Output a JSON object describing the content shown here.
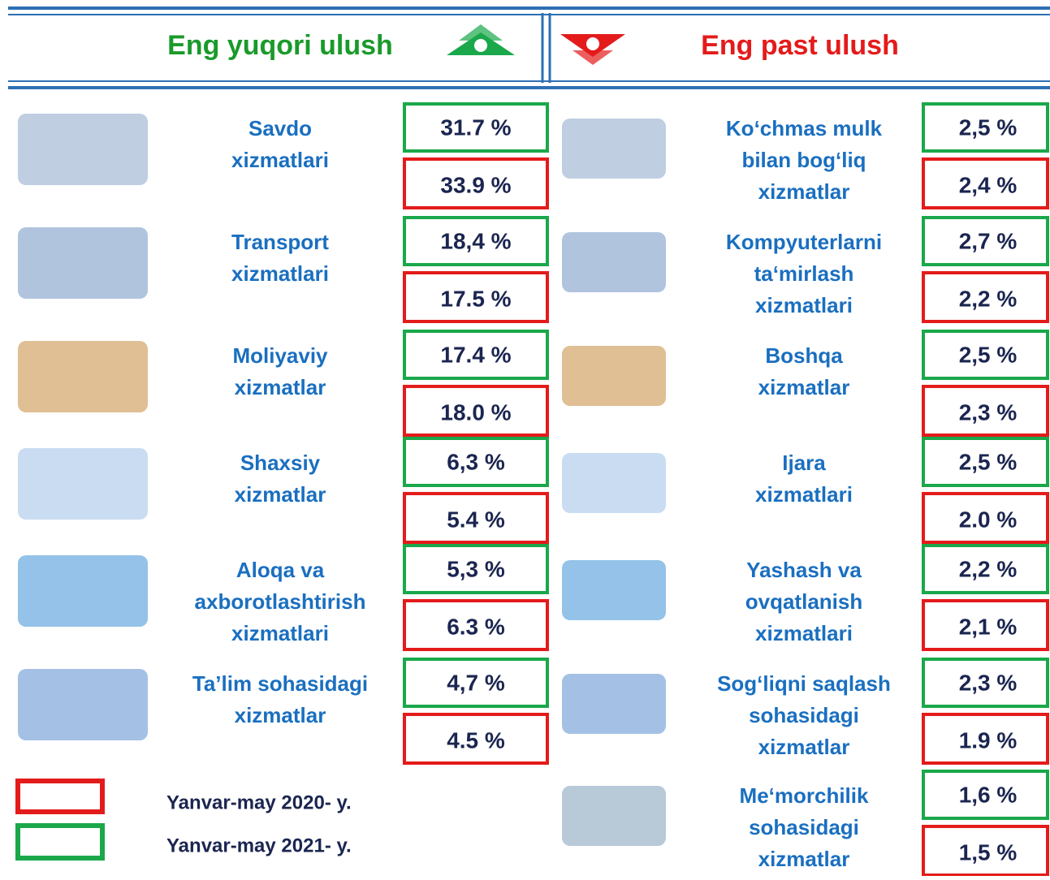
{
  "header": {
    "left_title": "Eng yuqori ulush",
    "right_title": "Eng past ulush"
  },
  "left": [
    {
      "label": [
        "Savdo",
        "xizmatlari"
      ],
      "y2021": "31.7 %",
      "y2020": "33.9 %"
    },
    {
      "label": [
        "Transport",
        "xizmatlari"
      ],
      "y2021": "18,4 %",
      "y2020": "17.5 %"
    },
    {
      "label": [
        "Moliyaviy",
        "xizmatlar"
      ],
      "y2021": "17.4 %",
      "y2020": "18.0 %"
    },
    {
      "label": [
        "Shaxsiy",
        "xizmatlar"
      ],
      "y2021": "6,3 %",
      "y2020": "5.4 %"
    },
    {
      "label": [
        "Aloqa va",
        "axborotlashtirish",
        "xizmatlari"
      ],
      "y2021": "5,3 %",
      "y2020": "6.3 %"
    },
    {
      "label": [
        "Ta’lim sohasidagi",
        "xizmatlar"
      ],
      "y2021": "4,7 %",
      "y2020": "4.5 %"
    }
  ],
  "right": [
    {
      "label": [
        "Ko‘chmas mulk",
        "bilan bog‘liq",
        "xizmatlar"
      ],
      "y2021": "2,5 %",
      "y2020": "2,4 %"
    },
    {
      "label": [
        "Kompyuterlarni",
        "ta‘mirlash",
        "xizmatlari"
      ],
      "y2021": "2,7 %",
      "y2020": "2,2 %"
    },
    {
      "label": [
        "Boshqa",
        "xizmatlar"
      ],
      "y2021": "2,5 %",
      "y2020": "2,3 %"
    },
    {
      "label": [
        "Ijara",
        "xizmatlari"
      ],
      "y2021": "2,5 %",
      "y2020": "2.0 %"
    },
    {
      "label": [
        "Yashash va",
        "ovqatlanish",
        "xizmatlari"
      ],
      "y2021": "2,2 %",
      "y2020": "2,1 %"
    },
    {
      "label": [
        "Sog‘liqni saqlash",
        "sohasidagi",
        "xizmatlar"
      ],
      "y2021": "2,3 %",
      "y2020": "1.9 %"
    },
    {
      "label": [
        "Me‘morchilik",
        "sohasidagi",
        "xizmatlar"
      ],
      "y2021": "1,6 %",
      "y2020": "1,5 %"
    }
  ],
  "legend": {
    "y2020": "Yanvar-may 2020- y.",
    "y2021": "Yanvar-may 2021- y."
  }
}
